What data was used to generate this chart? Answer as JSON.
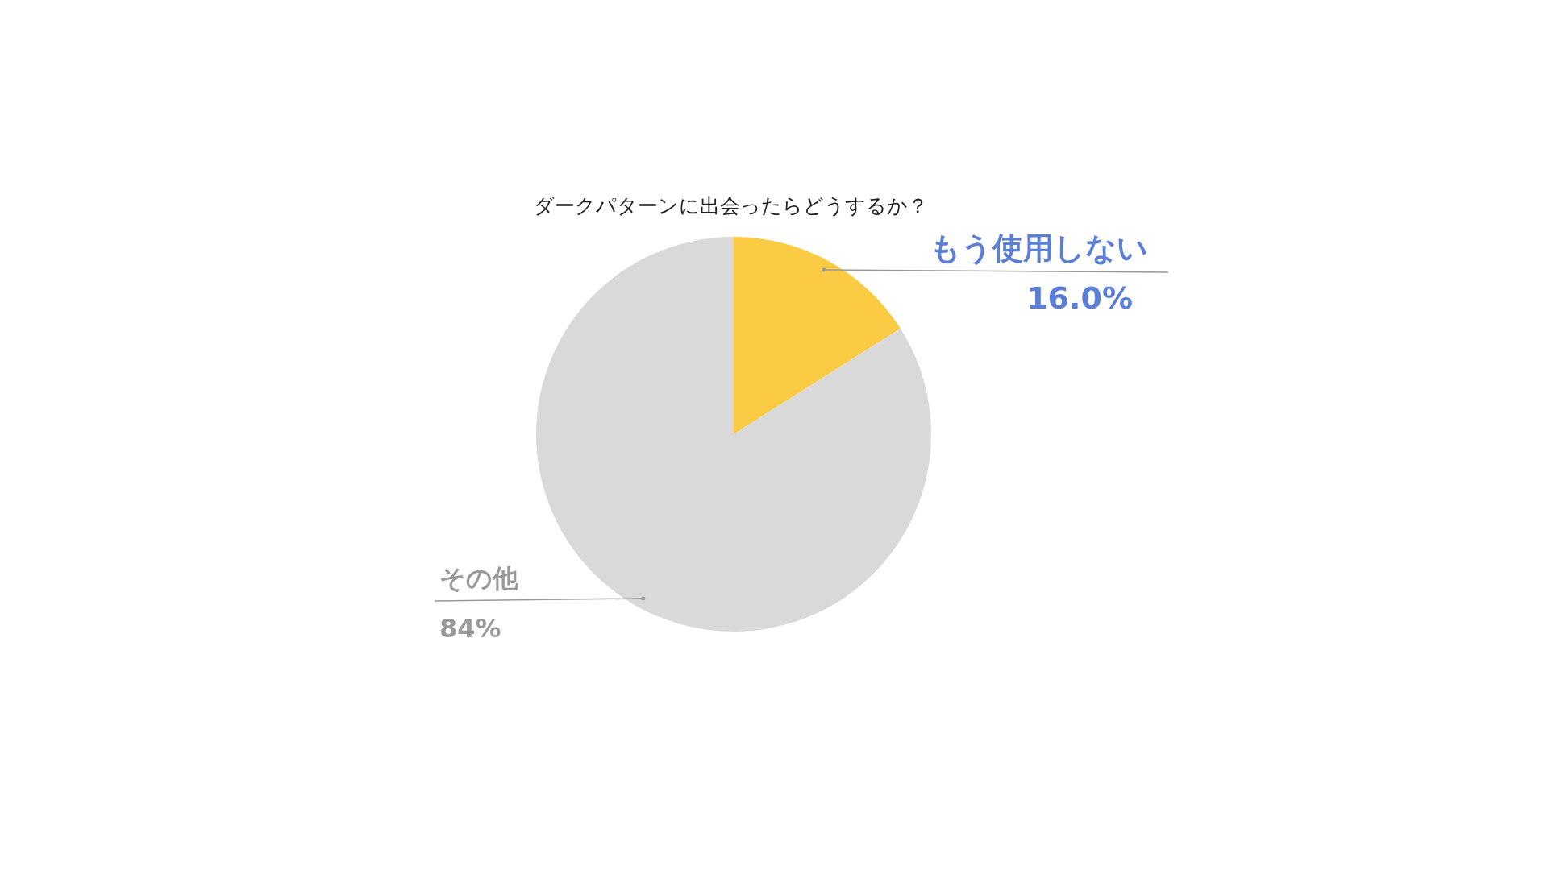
{
  "chart_data": {
    "type": "pie",
    "title": "ダークパターンに出会ったらどうするか？",
    "categories": [
      "もう使用しない",
      "その他"
    ],
    "values": [
      16.0,
      84
    ],
    "colors": [
      "#fbcb43",
      "#d9d9d9"
    ],
    "value_labels": [
      "16.0%",
      "84%"
    ],
    "legend": false
  }
}
